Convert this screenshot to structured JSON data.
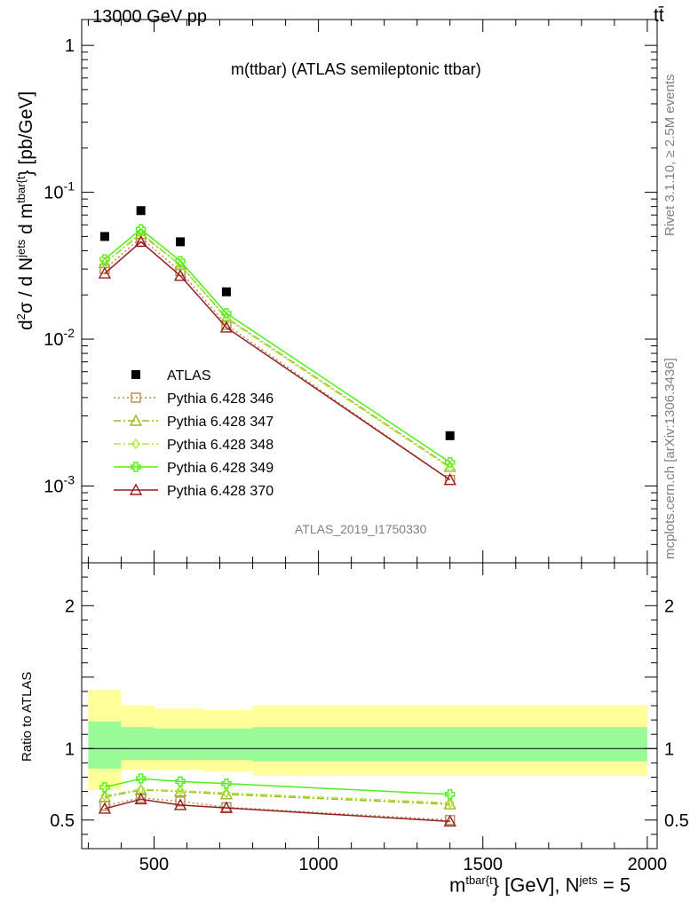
{
  "header": {
    "left": "13000 GeV pp",
    "right": "tt̄"
  },
  "side_labels": {
    "rivet": "Rivet 3.1.10, ≥ 2.5M events",
    "mcplots": "mcplots.cern.ch [arXiv:1306.3436]"
  },
  "analysis_id": "ATLAS_2019_I1750330",
  "axis_text": {
    "ylabel_main_a": "d",
    "ylabel_main_b": "σ / d N",
    "ylabel_main_c": " d m",
    "ylabel_main_d": "} [pb/GeV]",
    "ylabel_main_sup1": "2",
    "ylabel_main_sup2": "jets",
    "ylabel_main_sup3": "tbar{t",
    "ylabel_ratio": "Ratio to ATLAS",
    "xlabel_a": "m",
    "xlabel_sup1": "tbar{t",
    "xlabel_b": "} [GeV], N",
    "xlabel_sup2": "jets",
    "xlabel_c": " = 5"
  },
  "colors": {
    "data": "#000000",
    "p346": "#b48c50",
    "p347": "#a0b41e",
    "p348": "#aae63c",
    "p349": "#50f014",
    "p370": "#961e1e",
    "band_inner": "#98fb98",
    "band_outer": "#ffff99"
  },
  "chart_data": {
    "type": "line",
    "title": "m(ttbar) (ATLAS semileptonic ttbar)",
    "x": [
      350,
      460,
      580,
      720,
      1400
    ],
    "x_axis": {
      "range": [
        280,
        2030
      ],
      "ticks": [
        500,
        1000,
        1500,
        2000
      ]
    },
    "main_panel": {
      "scale": "log",
      "ylim": [
        0.0003,
        1.5
      ],
      "tick_labels": [
        "1",
        "10^-1",
        "10^-2",
        "10^-3"
      ],
      "series": [
        {
          "name": "ATLAS",
          "marker": "square",
          "values": [
            0.05,
            0.075,
            0.046,
            0.021,
            0.0022
          ]
        },
        {
          "name": "Pythia 6.428 346",
          "marker": "open-square",
          "style": "dotted",
          "values": [
            0.03,
            0.049,
            0.029,
            0.0125,
            0.0011
          ]
        },
        {
          "name": "Pythia 6.428 347",
          "marker": "open-triangle",
          "style": "dashdot",
          "values": [
            0.033,
            0.052,
            0.032,
            0.014,
            0.00135
          ]
        },
        {
          "name": "Pythia 6.428 348",
          "marker": "diamond",
          "style": "dashdot",
          "values": [
            0.033,
            0.053,
            0.032,
            0.0138,
            0.00133
          ]
        },
        {
          "name": "Pythia 6.428 349",
          "marker": "cross",
          "style": "solid",
          "values": [
            0.035,
            0.056,
            0.034,
            0.015,
            0.00145
          ]
        },
        {
          "name": "Pythia 6.428 370",
          "marker": "open-triangle",
          "style": "solid",
          "values": [
            0.028,
            0.046,
            0.027,
            0.012,
            0.0011
          ]
        }
      ]
    },
    "ratio_panel": {
      "ylim": [
        0.3,
        2.3
      ],
      "ticks": [
        0.5,
        1,
        2
      ],
      "reference": 1,
      "bands": [
        {
          "x_from": 300,
          "x_to": 400,
          "inner": [
            0.86,
            1.19
          ],
          "outer": [
            0.71,
            1.41
          ]
        },
        {
          "x_from": 400,
          "x_to": 500,
          "inner": [
            0.92,
            1.15
          ],
          "outer": [
            0.85,
            1.3
          ]
        },
        {
          "x_from": 500,
          "x_to": 650,
          "inner": [
            0.92,
            1.14
          ],
          "outer": [
            0.85,
            1.28
          ]
        },
        {
          "x_from": 650,
          "x_to": 800,
          "inner": [
            0.92,
            1.14
          ],
          "outer": [
            0.84,
            1.27
          ]
        },
        {
          "x_from": 800,
          "x_to": 2000,
          "inner": [
            0.91,
            1.15
          ],
          "outer": [
            0.81,
            1.3
          ]
        }
      ],
      "series": [
        {
          "name": "Pythia 6.428 346",
          "values": [
            0.6,
            0.655,
            0.63,
            0.59,
            0.5
          ]
        },
        {
          "name": "Pythia 6.428 347",
          "values": [
            0.66,
            0.71,
            0.7,
            0.68,
            0.61
          ]
        },
        {
          "name": "Pythia 6.428 348",
          "values": [
            0.67,
            0.715,
            0.705,
            0.69,
            0.62
          ]
        },
        {
          "name": "Pythia 6.428 349",
          "values": [
            0.73,
            0.79,
            0.77,
            0.755,
            0.68
          ]
        },
        {
          "name": "Pythia 6.428 370",
          "values": [
            0.58,
            0.645,
            0.605,
            0.585,
            0.49
          ]
        }
      ]
    }
  }
}
